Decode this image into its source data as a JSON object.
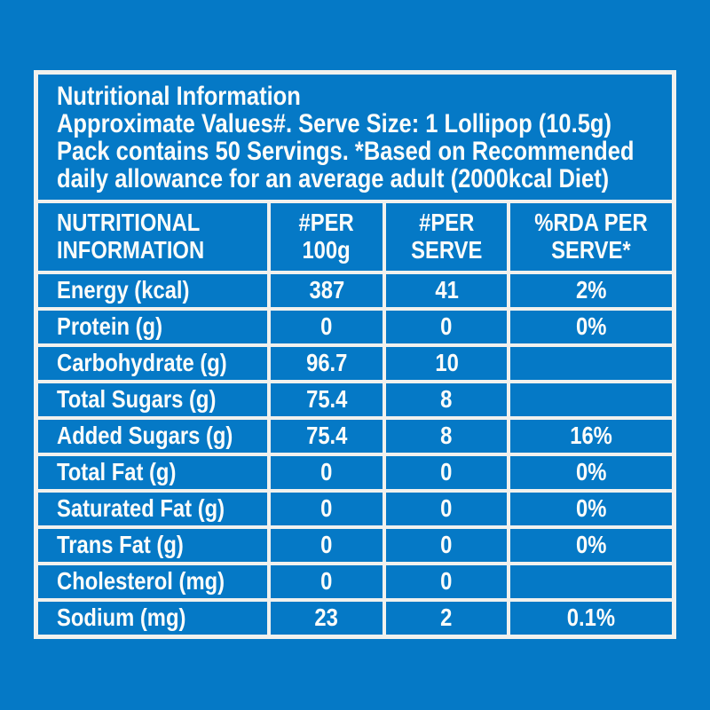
{
  "theme": {
    "background_color": "#0579c6",
    "grid_line_color": "#f1f1ee",
    "text_color": "#fcfcfa"
  },
  "header": {
    "lines": [
      "Nutritional Information",
      "Approximate Values#. Serve Size: 1 Lollipop (10.5g)",
      "Pack contains 50 Servings. *Based on Recommended",
      "daily allowance for an average adult (2000kcal Diet)"
    ]
  },
  "table": {
    "columns": [
      "NUTRITIONAL\nINFORMATION",
      "#PER\n100g",
      "#PER\nSERVE",
      "%RDA PER\nSERVE*"
    ],
    "rows": [
      {
        "label": "Energy (kcal)",
        "per_100g": "387",
        "per_serve": "41",
        "rda_per_serve": "2%"
      },
      {
        "label": "Protein (g)",
        "per_100g": "0",
        "per_serve": "0",
        "rda_per_serve": "0%"
      },
      {
        "label": "Carbohydrate (g)",
        "per_100g": "96.7",
        "per_serve": "10",
        "rda_per_serve": ""
      },
      {
        "label": "Total Sugars (g)",
        "per_100g": "75.4",
        "per_serve": "8",
        "rda_per_serve": ""
      },
      {
        "label": "Added Sugars (g)",
        "per_100g": "75.4",
        "per_serve": "8",
        "rda_per_serve": "16%"
      },
      {
        "label": "Total Fat (g)",
        "per_100g": "0",
        "per_serve": "0",
        "rda_per_serve": "0%"
      },
      {
        "label": "Saturated Fat (g)",
        "per_100g": "0",
        "per_serve": "0",
        "rda_per_serve": "0%"
      },
      {
        "label": "Trans Fat (g)",
        "per_100g": "0",
        "per_serve": "0",
        "rda_per_serve": "0%"
      },
      {
        "label": "Cholesterol (mg)",
        "per_100g": "0",
        "per_serve": "0",
        "rda_per_serve": ""
      },
      {
        "label": "Sodium (mg)",
        "per_100g": "23",
        "per_serve": "2",
        "rda_per_serve": "0.1%"
      }
    ]
  }
}
